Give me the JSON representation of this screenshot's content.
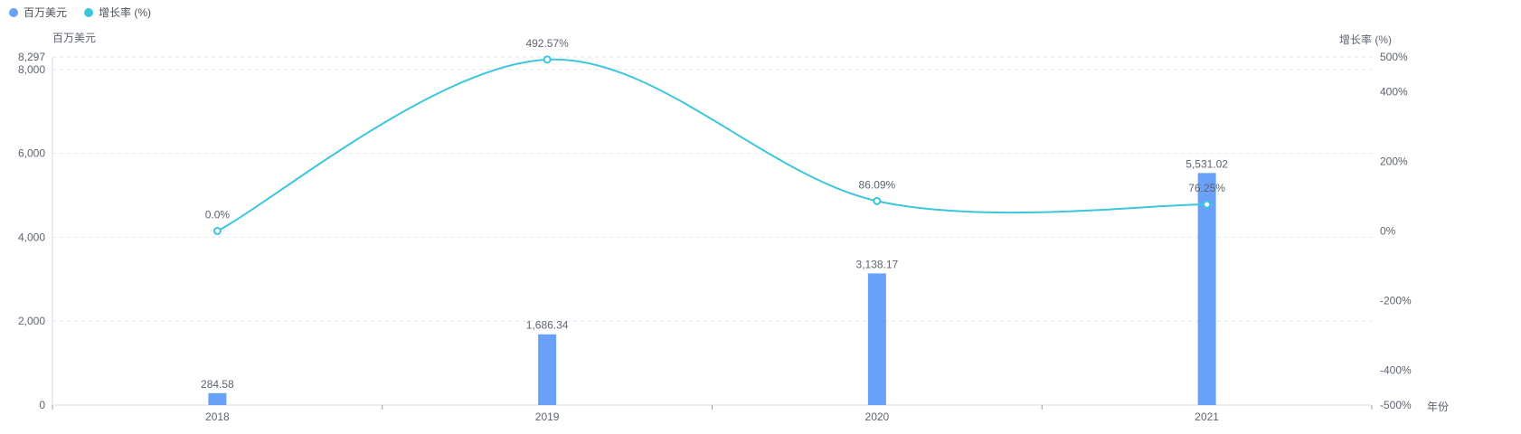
{
  "legend": {
    "items": [
      {
        "label": "百万美元",
        "color": "#69A1F9"
      },
      {
        "label": "增长率 (%)",
        "color": "#3CC6DC"
      }
    ]
  },
  "chart_data": {
    "type": "combo",
    "categories": [
      "2018",
      "2019",
      "2020",
      "2021"
    ],
    "series": [
      {
        "name": "百万美元",
        "type": "bar",
        "y_axis": "left",
        "color": "#69A1F9",
        "values": [
          284.58,
          1686.34,
          3138.17,
          5531.02
        ],
        "labels": [
          "284.58",
          "1,686.34",
          "3,138.17",
          "5,531.02"
        ]
      },
      {
        "name": "增长率 (%)",
        "type": "line",
        "y_axis": "right",
        "color": "#3CC6DC",
        "values": [
          0.0,
          492.57,
          86.09,
          76.25
        ],
        "labels": [
          "0.0%",
          "492.57%",
          "86.09%",
          "76.25%"
        ]
      }
    ],
    "left_axis": {
      "title": "百万美元",
      "min": 0,
      "max": 8297,
      "ticks": [
        {
          "value": 0,
          "label": "0"
        },
        {
          "value": 2000,
          "label": "2,000"
        },
        {
          "value": 4000,
          "label": "4,000"
        },
        {
          "value": 6000,
          "label": "6,000"
        },
        {
          "value": 8000,
          "label": "8,000"
        },
        {
          "value": 8297,
          "label": "8,297"
        }
      ]
    },
    "right_axis": {
      "title": "增长率 (%)",
      "min": -500,
      "max": 500,
      "ticks": [
        {
          "value": -500,
          "label": "-500%"
        },
        {
          "value": -400,
          "label": "-400%"
        },
        {
          "value": -200,
          "label": "-200%"
        },
        {
          "value": 0,
          "label": "0%"
        },
        {
          "value": 200,
          "label": "200%"
        },
        {
          "value": 400,
          "label": "400%"
        },
        {
          "value": 500,
          "label": "500%"
        }
      ]
    },
    "x_axis": {
      "name": "年份",
      "labels": [
        "2018",
        "2019",
        "2020",
        "2021"
      ]
    },
    "grid": {
      "horizontal_gridlines": "dashed",
      "at_left_axis_ticks_except_zero": true
    }
  },
  "style": {
    "grid_color": "#E0E6F1",
    "axis_line_color": "#D5DCE4",
    "tick_color": "#979CA4",
    "label_color": "#5D6470"
  }
}
